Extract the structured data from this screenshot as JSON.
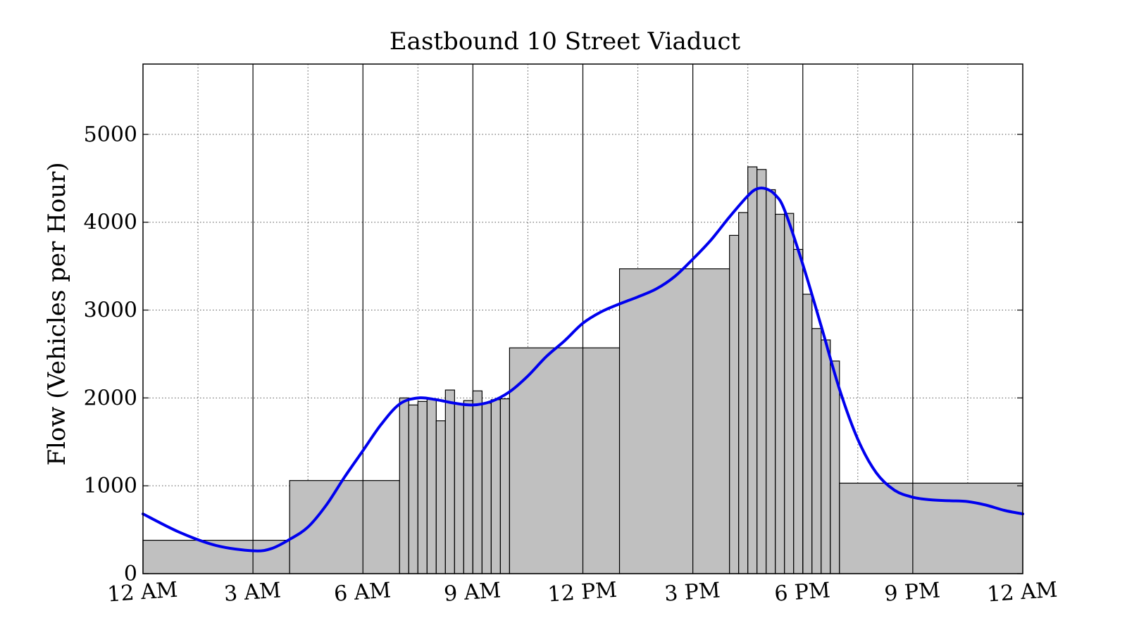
{
  "chart_data": {
    "type": "bar",
    "title": "Eastbound 10 Street Viaduct",
    "xlabel": "",
    "ylabel": "Flow (Vehicles per Hour)",
    "xlim_hours": [
      0,
      24
    ],
    "ylim": [
      0,
      5800
    ],
    "yticks": [
      0,
      1000,
      2000,
      3000,
      4000,
      5000
    ],
    "xticks": [
      {
        "hour": 0,
        "label": "12 AM"
      },
      {
        "hour": 3,
        "label": "3 AM"
      },
      {
        "hour": 6,
        "label": "6 AM"
      },
      {
        "hour": 9,
        "label": "9 AM"
      },
      {
        "hour": 12,
        "label": "12 PM"
      },
      {
        "hour": 15,
        "label": "3 PM"
      },
      {
        "hour": 18,
        "label": "6 PM"
      },
      {
        "hour": 21,
        "label": "9 PM"
      },
      {
        "hour": 24,
        "label": "12 AM"
      }
    ],
    "grid": true,
    "bars": [
      {
        "start": 0,
        "end": 4,
        "value": 380
      },
      {
        "start": 4,
        "end": 7,
        "value": 1060
      },
      {
        "start": 7,
        "end": 7.25,
        "value": 2000
      },
      {
        "start": 7.25,
        "end": 7.5,
        "value": 1920
      },
      {
        "start": 7.5,
        "end": 7.75,
        "value": 1960
      },
      {
        "start": 7.75,
        "end": 8,
        "value": 1990
      },
      {
        "start": 8,
        "end": 8.25,
        "value": 1740
      },
      {
        "start": 8.25,
        "end": 8.5,
        "value": 2090
      },
      {
        "start": 8.5,
        "end": 8.75,
        "value": 1930
      },
      {
        "start": 8.75,
        "end": 9,
        "value": 1970
      },
      {
        "start": 9,
        "end": 9.25,
        "value": 2080
      },
      {
        "start": 9.25,
        "end": 9.5,
        "value": 1940
      },
      {
        "start": 9.5,
        "end": 9.75,
        "value": 1980
      },
      {
        "start": 9.75,
        "end": 10,
        "value": 1990
      },
      {
        "start": 10,
        "end": 13,
        "value": 2570
      },
      {
        "start": 13,
        "end": 16,
        "value": 3470
      },
      {
        "start": 16,
        "end": 16.25,
        "value": 3850
      },
      {
        "start": 16.25,
        "end": 16.5,
        "value": 4110
      },
      {
        "start": 16.5,
        "end": 16.75,
        "value": 4630
      },
      {
        "start": 16.75,
        "end": 17,
        "value": 4600
      },
      {
        "start": 17,
        "end": 17.25,
        "value": 4370
      },
      {
        "start": 17.25,
        "end": 17.5,
        "value": 4090
      },
      {
        "start": 17.5,
        "end": 17.75,
        "value": 4100
      },
      {
        "start": 17.75,
        "end": 18,
        "value": 3690
      },
      {
        "start": 18,
        "end": 18.25,
        "value": 3180
      },
      {
        "start": 18.25,
        "end": 18.5,
        "value": 2790
      },
      {
        "start": 18.5,
        "end": 18.75,
        "value": 2660
      },
      {
        "start": 18.75,
        "end": 19,
        "value": 2420
      },
      {
        "start": 19,
        "end": 24,
        "value": 1030
      }
    ],
    "curve": {
      "color": "#0000ee",
      "points": [
        [
          0,
          680
        ],
        [
          1,
          470
        ],
        [
          2,
          320
        ],
        [
          3,
          260
        ],
        [
          3.5,
          285
        ],
        [
          4,
          390
        ],
        [
          4.5,
          530
        ],
        [
          5,
          780
        ],
        [
          5.5,
          1100
        ],
        [
          6,
          1400
        ],
        [
          6.5,
          1700
        ],
        [
          7,
          1930
        ],
        [
          7.5,
          2000
        ],
        [
          8,
          1980
        ],
        [
          8.5,
          1940
        ],
        [
          9,
          1920
        ],
        [
          9.5,
          1960
        ],
        [
          10,
          2070
        ],
        [
          10.5,
          2250
        ],
        [
          11,
          2470
        ],
        [
          11.5,
          2650
        ],
        [
          12,
          2850
        ],
        [
          12.5,
          2980
        ],
        [
          13,
          3070
        ],
        [
          13.5,
          3150
        ],
        [
          14,
          3240
        ],
        [
          14.5,
          3380
        ],
        [
          15,
          3580
        ],
        [
          15.5,
          3800
        ],
        [
          16,
          4060
        ],
        [
          16.5,
          4300
        ],
        [
          16.75,
          4380
        ],
        [
          17,
          4380
        ],
        [
          17.25,
          4310
        ],
        [
          17.5,
          4140
        ],
        [
          18,
          3520
        ],
        [
          18.5,
          2820
        ],
        [
          19,
          2100
        ],
        [
          19.5,
          1530
        ],
        [
          20,
          1150
        ],
        [
          20.5,
          950
        ],
        [
          21,
          870
        ],
        [
          21.5,
          840
        ],
        [
          22,
          830
        ],
        [
          22.5,
          820
        ],
        [
          23,
          780
        ],
        [
          23.5,
          720
        ],
        [
          24,
          680
        ]
      ]
    },
    "colors": {
      "bar_fill": "#c0c0c0",
      "bar_edge": "#000000",
      "curve": "#0000ee"
    }
  }
}
